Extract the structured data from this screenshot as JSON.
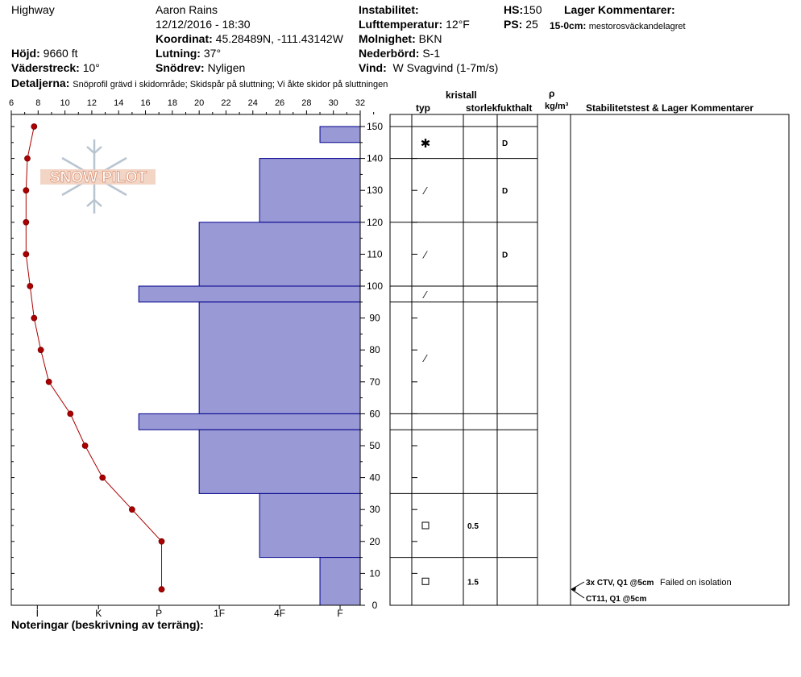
{
  "header": {
    "location": "Highway",
    "observer": "Aaron Rains",
    "datetime": "12/12/2016 - 18:30",
    "coord_label": "Koordinat:",
    "coord_value": "45.28489N, -111.43142W",
    "elev_label": "Höjd:",
    "elev_value": "9660 ft",
    "slope_label": "Lutning:",
    "slope_value": "37°",
    "aspect_label": "Väderstreck:",
    "aspect_value": "10°",
    "wind_loading_label": "Snödrev:",
    "wind_loading_value": "Nyligen",
    "details_label": "Detaljerna:",
    "details_value": "Snöprofil grävd i skidområde;  Skidspår på sluttning;  Vi åkte skidor på sluttningen",
    "instability_label": "Instabilitet:",
    "air_temp_label": "Lufttemperatur:",
    "air_temp_value": "12°F",
    "sky_label": "Molnighet:",
    "sky_value": "BKN",
    "precip_label": "Nederbörd:",
    "precip_value": "S-1",
    "wind_label": "Vind:",
    "wind_value": "W Svagvind (1-7m/s)",
    "hs_label": "HS:",
    "hs_value": "150",
    "ps_label": "PS:",
    "ps_value": "25",
    "layer_comments_label": "Lager Kommentarer:",
    "layer_comment_depth": "15-0cm:",
    "layer_comment_text": "mestorosväckandelagret"
  },
  "watermark": {
    "text": "SNOW PILOT",
    "color": "#e8a080"
  },
  "table_headers": {
    "crystal": "kristall",
    "type": "typ",
    "size": "storlek",
    "moisture": "fukthalt",
    "rho": "ρ",
    "density_unit": "kg/m³",
    "stability": "Stabilitetstest & Lager Kommentarer"
  },
  "footer": {
    "notes_label": "Noteringar (beskrivning av terräng):"
  },
  "colors": {
    "hardness_fill": "#9999d6",
    "hardness_stroke": "#00008b",
    "temp_line": "#aa0000"
  },
  "chart_data": {
    "type": "snow-profile",
    "temperature_axis": {
      "ticks": [
        "6",
        "8",
        "10",
        "12",
        "14",
        "16",
        "18",
        "20",
        "22",
        "24",
        "26",
        "28",
        "30",
        "32"
      ],
      "range": [
        6,
        32
      ]
    },
    "height_axis": {
      "ticks": [
        "0",
        "10",
        "20",
        "30",
        "40",
        "50",
        "60",
        "70",
        "80",
        "90",
        "100",
        "110",
        "120",
        "130",
        "140",
        "150"
      ],
      "range": [
        0,
        150
      ]
    },
    "hardness_axis": {
      "labels": [
        "I",
        "K",
        "P",
        "1F",
        "4F",
        "F"
      ]
    },
    "temperature_profile": [
      {
        "height": 5,
        "temp": 17.2
      },
      {
        "height": 20,
        "temp": 17.2
      },
      {
        "height": 30,
        "temp": 15.0
      },
      {
        "height": 40,
        "temp": 12.8
      },
      {
        "height": 50,
        "temp": 11.5
      },
      {
        "height": 60,
        "temp": 10.4
      },
      {
        "height": 70,
        "temp": 8.8
      },
      {
        "height": 80,
        "temp": 8.2
      },
      {
        "height": 90,
        "temp": 7.7
      },
      {
        "height": 100,
        "temp": 7.4
      },
      {
        "height": 110,
        "temp": 7.1
      },
      {
        "height": 120,
        "temp": 7.1
      },
      {
        "height": 130,
        "temp": 7.1
      },
      {
        "height": 140,
        "temp": 7.2
      },
      {
        "height": 150,
        "temp": 7.7
      }
    ],
    "hardness_layers": [
      {
        "from": 145,
        "to": 150,
        "hardness_temp": 29.0
      },
      {
        "from": 120,
        "to": 140,
        "hardness_temp": 24.5
      },
      {
        "from": 100,
        "to": 120,
        "hardness_temp": 20.0
      },
      {
        "from": 95,
        "to": 100,
        "hardness_temp": 15.5
      },
      {
        "from": 60,
        "to": 95,
        "hardness_temp": 20.0
      },
      {
        "from": 55,
        "to": 60,
        "hardness_temp": 15.5
      },
      {
        "from": 35,
        "to": 55,
        "hardness_temp": 20.0
      },
      {
        "from": 15,
        "to": 35,
        "hardness_temp": 24.5
      },
      {
        "from": 0,
        "to": 15,
        "hardness_temp": 29.0
      }
    ],
    "layer_boundaries": [
      150,
      140,
      120,
      100,
      95,
      60,
      55,
      35,
      15
    ],
    "crystals": [
      {
        "height": 145,
        "symbol": "✱",
        "size": "",
        "moisture": "D"
      },
      {
        "height": 130,
        "symbol": "⁄",
        "size": "",
        "moisture": "D"
      },
      {
        "height": 110,
        "symbol": "⁄",
        "size": "",
        "moisture": "D"
      },
      {
        "height": 97.5,
        "symbol": "⁄",
        "size": "",
        "moisture": ""
      },
      {
        "height": 77.5,
        "symbol": "⁄",
        "size": "",
        "moisture": ""
      },
      {
        "height": 25,
        "symbol": "□",
        "size": "0.5",
        "moisture": ""
      },
      {
        "height": 7.5,
        "symbol": "□",
        "size": "1.5",
        "moisture": ""
      }
    ],
    "tests": [
      {
        "height": 5,
        "label": "3x CTV, Q1 @5cm",
        "comment": "Failed on isolation"
      },
      {
        "height": 5,
        "label": "CT11, Q1 @5cm",
        "comment": ""
      }
    ]
  }
}
